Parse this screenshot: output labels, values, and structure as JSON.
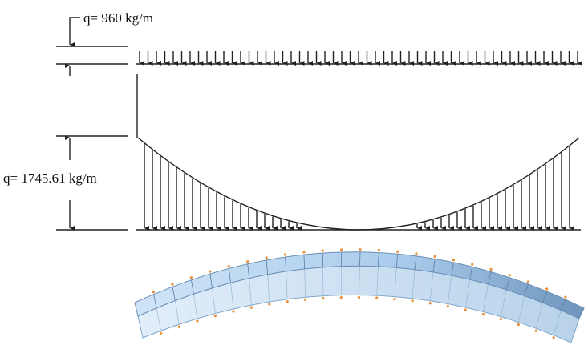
{
  "labels": {
    "uniform_load": "q= 960 kg/m",
    "parabolic_load": "q= 1745.61 kg/m"
  }
}
